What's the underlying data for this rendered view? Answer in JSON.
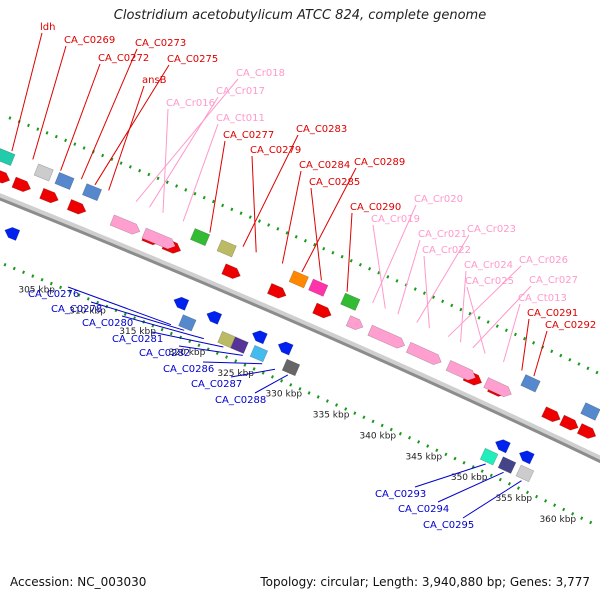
{
  "title": "Clostridium acetobutylicum ATCC 824, complete genome",
  "footer": {
    "accession": "Accession: NC_003030",
    "summary": "Topology: circular; Length: 3,940,880 bp; Genes: 3,777"
  },
  "colors": {
    "forward_label": "#dd0000",
    "reverse_label": "#0000cc",
    "rna_label": "#ff99cc",
    "backbone": "#8c8c8c",
    "ruler_dots": "#1a9a1a",
    "cds_forward": "#ee0000",
    "cds_reverse": "#0022ee",
    "rna_feature": "#ff9fd0"
  },
  "ticks": [
    {
      "label": "305 kbp"
    },
    {
      "label": "310 kbp"
    },
    {
      "label": "315 kbp"
    },
    {
      "label": "320 kbp"
    },
    {
      "label": "325 kbp"
    },
    {
      "label": "330 kbp"
    },
    {
      "label": "335 kbp"
    },
    {
      "label": "340 kbp"
    },
    {
      "label": "345 kbp"
    },
    {
      "label": "350 kbp"
    },
    {
      "label": "355 kbp"
    },
    {
      "label": "360 kbp"
    }
  ],
  "labels_top": [
    {
      "text": "ldh",
      "type": "cds"
    },
    {
      "text": "CA_C0269",
      "type": "cds"
    },
    {
      "text": "CA_C0272",
      "type": "cds"
    },
    {
      "text": "CA_C0273",
      "type": "cds"
    },
    {
      "text": "CA_C0275",
      "type": "cds"
    },
    {
      "text": "ansB",
      "type": "cds"
    },
    {
      "text": "CA_Cr018",
      "type": "rna"
    },
    {
      "text": "CA_Cr017",
      "type": "rna"
    },
    {
      "text": "CA_Cr016",
      "type": "rna"
    },
    {
      "text": "CA_Ct011",
      "type": "rna"
    },
    {
      "text": "CA_C0277",
      "type": "cds"
    },
    {
      "text": "CA_C0283",
      "type": "cds"
    },
    {
      "text": "CA_C0279",
      "type": "cds"
    },
    {
      "text": "CA_C0284",
      "type": "cds"
    },
    {
      "text": "CA_C0289",
      "type": "cds"
    },
    {
      "text": "CA_C0285",
      "type": "cds"
    },
    {
      "text": "CA_C0290",
      "type": "cds"
    },
    {
      "text": "CA_Cr020",
      "type": "rna"
    },
    {
      "text": "CA_Cr019",
      "type": "rna"
    },
    {
      "text": "CA_Cr021",
      "type": "rna"
    },
    {
      "text": "CA_Cr023",
      "type": "rna"
    },
    {
      "text": "CA_Cr022",
      "type": "rna"
    },
    {
      "text": "CA_Cr026",
      "type": "rna"
    },
    {
      "text": "CA_Cr024",
      "type": "rna"
    },
    {
      "text": "CA_Cr027",
      "type": "rna"
    },
    {
      "text": "CA_Cr025",
      "type": "rna"
    },
    {
      "text": "CA_Ct013",
      "type": "rna"
    },
    {
      "text": "CA_C0291",
      "type": "cds"
    },
    {
      "text": "CA_C0292",
      "type": "cds"
    }
  ],
  "labels_bottom": [
    {
      "text": "CA_C0276"
    },
    {
      "text": "CA_C0278"
    },
    {
      "text": "CA_C0280"
    },
    {
      "text": "CA_C0281"
    },
    {
      "text": "CA_C0282"
    },
    {
      "text": "CA_C0286"
    },
    {
      "text": "CA_C0287"
    },
    {
      "text": "CA_C0288"
    },
    {
      "text": "CA_C0293"
    },
    {
      "text": "CA_C0294"
    },
    {
      "text": "CA_C0295"
    }
  ]
}
